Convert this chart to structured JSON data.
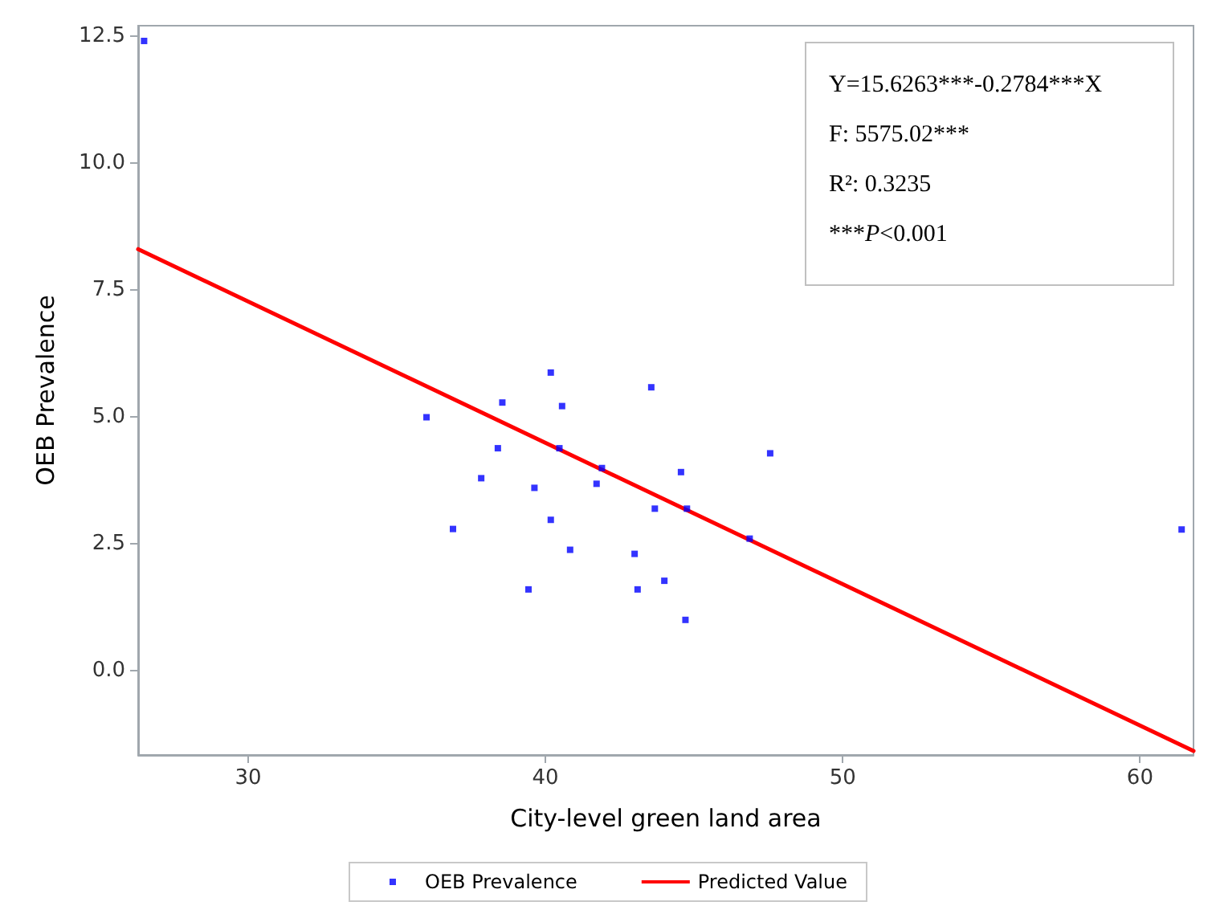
{
  "chart_data": {
    "type": "scatter",
    "xlabel": "City-level green land area",
    "ylabel": "OEB Prevalence",
    "xlim": [
      26.3,
      61.8
    ],
    "ylim": [
      -1.66,
      12.7
    ],
    "xticks": [
      30,
      40,
      50,
      60
    ],
    "yticks": [
      {
        "value": 0,
        "label": "0.0"
      },
      {
        "value": 2.5,
        "label": "2.5"
      },
      {
        "value": 5,
        "label": "5.0"
      },
      {
        "value": 7.5,
        "label": "7.5"
      },
      {
        "value": 10,
        "label": "10.0"
      },
      {
        "value": 12.5,
        "label": "12.5"
      }
    ],
    "grid": false,
    "legend": "bottom",
    "marker": "square",
    "annotations": [
      "Y=15.6263***-0.2784***X",
      "F: 5575.02***",
      "R²: 0.3235",
      "***P<0.001"
    ],
    "series": [
      {
        "name": "OEB Prevalence",
        "color": "#0000ff",
        "x": [
          26.5,
          61.4,
          40.18,
          43.56,
          38.55,
          40.56,
          36.0,
          47.56,
          38.4,
          40.47,
          41.9,
          37.84,
          44.56,
          39.63,
          41.72,
          43.68,
          44.76,
          46.87,
          36.89,
          40.18,
          40.83,
          43.0,
          44.0,
          39.43,
          43.1,
          44.71
        ],
        "values": [
          12.4,
          2.78,
          5.87,
          5.58,
          5.28,
          5.21,
          4.99,
          4.28,
          4.38,
          4.38,
          3.99,
          3.79,
          3.91,
          3.6,
          3.68,
          3.19,
          3.19,
          2.6,
          2.79,
          2.97,
          2.38,
          2.3,
          1.77,
          1.6,
          1.6,
          1.0
        ]
      },
      {
        "name": "Predicted Value",
        "type": "line",
        "color": "#ff0000",
        "marker": "none",
        "line_style": "solid",
        "x": [
          26.3,
          61.8
        ],
        "values": [
          8.3,
          -1.58
        ]
      }
    ]
  }
}
